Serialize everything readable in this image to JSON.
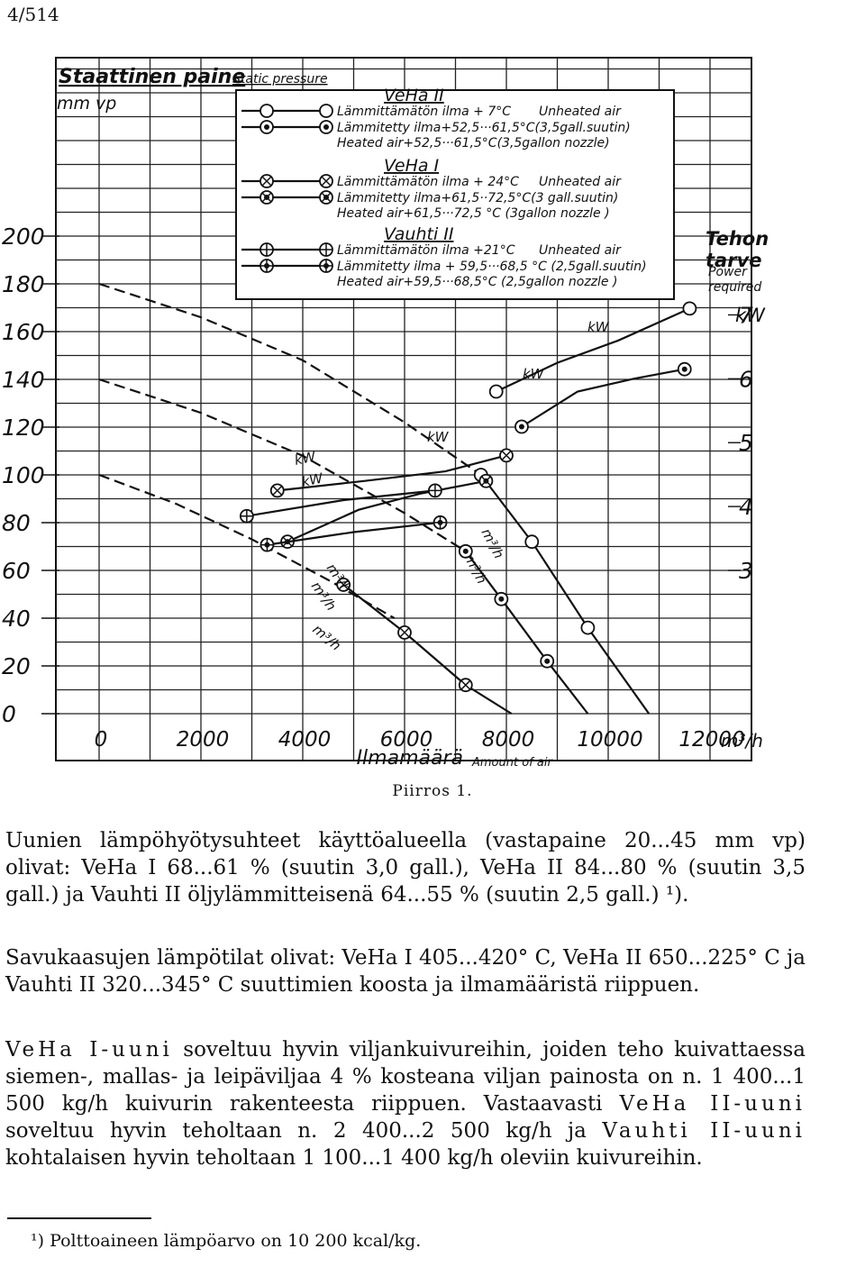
{
  "page_number": "4/514",
  "figure": {
    "y_title_fi": "Staattinen paine",
    "y_title_en": "Static pressure",
    "y_unit": "mm vp",
    "x_title_fi": "Ilmamäärä",
    "x_title_en": "Amount of air",
    "x_unit": "m³/h",
    "right_title_fi": "Tehon tarve",
    "right_title_en": "Power required",
    "right_unit": "kW",
    "kw_tag": "kW",
    "m3h_tag": "m³/h",
    "legend": [
      {
        "model": "VeHa II",
        "unheated_fi": "Lämmittämätön ilma + 7°C",
        "unheated_en": "Unheated air",
        "heated_fi": "Lämmitetty ilma+52,5···61,5°C(3,5gall.suutin)",
        "heated_en": "Heated air+52,5···61,5°C(3,5gallon nozzle)"
      },
      {
        "model": "VeHa I",
        "unheated_fi": "Lämmittämätön ilma + 24°C",
        "unheated_en": "Unheated air",
        "heated_fi": "Lämmitetty ilma+61,5··72,5°C(3 gall.suutin)",
        "heated_en": "Heated air+61,5···72,5 °C (3gallon nozzle )"
      },
      {
        "model": "Vauhti II",
        "unheated_fi": "Lämmittämätön ilma +21°C",
        "unheated_en": "Unheated air",
        "heated_fi": "Lämmitetty ilma + 59,5···68,5 °C (2,5gall.suutin)",
        "heated_en": "Heated air+59,5···68,5°C (2,5gallon nozzle )"
      }
    ]
  },
  "chart_data": {
    "type": "line",
    "x_ticks": [
      "0",
      "2000",
      "4000",
      "6000",
      "8000",
      "10000",
      "12000"
    ],
    "y_ticks": [
      "0",
      "20",
      "40",
      "60",
      "80",
      "100",
      "120",
      "140",
      "160",
      "180",
      "200"
    ],
    "power_ticks": [
      "3",
      "4",
      "5",
      "6",
      "7"
    ],
    "xlim": [
      0,
      12000
    ],
    "ylim": [
      0,
      200
    ],
    "power_lim": [
      3,
      7
    ],
    "series": [
      {
        "role": "pressure",
        "style": "dashed",
        "heated": false,
        "marker": "open-circle",
        "x": [
          0,
          2000,
          4000,
          6000,
          7500
        ],
        "y": [
          180,
          166,
          148,
          122,
          100
        ]
      },
      {
        "role": "pressure",
        "style": "dashed",
        "heated": true,
        "marker": "open-circle",
        "x": [
          0,
          2000,
          4000,
          6000,
          7200
        ],
        "y": [
          140,
          126,
          108,
          84,
          68
        ]
      },
      {
        "role": "pressure",
        "style": "dashed",
        "heated": false,
        "marker": "crossed-circle",
        "x": [
          0,
          1500,
          3000,
          4500,
          5800
        ],
        "y": [
          100,
          88,
          73,
          56,
          40
        ]
      },
      {
        "role": "pressure",
        "style": "solid",
        "heated": false,
        "marker": "open-circle",
        "x": [
          7500,
          8500,
          9600,
          10800
        ],
        "y": [
          100,
          72,
          36,
          0
        ]
      },
      {
        "role": "pressure",
        "style": "solid",
        "heated": true,
        "marker": "open-circle",
        "x": [
          7200,
          7900,
          8800,
          9600
        ],
        "y": [
          68,
          48,
          22,
          0
        ]
      },
      {
        "role": "pressure",
        "style": "solid",
        "heated": false,
        "marker": "crossed-circle",
        "x": [
          4800,
          6000,
          7200,
          8100
        ],
        "y": [
          54,
          34,
          12,
          0
        ]
      },
      {
        "role": "power",
        "style": "solid",
        "heated": false,
        "marker": "open-circle",
        "x": [
          7800,
          9000,
          10200,
          11600
        ],
        "y": [
          5.8,
          6.25,
          6.6,
          7.1
        ]
      },
      {
        "role": "power",
        "style": "solid",
        "heated": true,
        "marker": "open-circle",
        "x": [
          8300,
          9400,
          10500,
          11500
        ],
        "y": [
          5.25,
          5.8,
          6.0,
          6.15
        ]
      },
      {
        "role": "power",
        "style": "solid",
        "heated": false,
        "marker": "crossed-circle",
        "x": [
          3500,
          5200,
          6800,
          8000
        ],
        "y": [
          4.25,
          4.4,
          4.55,
          4.8
        ]
      },
      {
        "role": "power",
        "style": "solid",
        "heated": true,
        "marker": "crossed-circle",
        "x": [
          3700,
          5100,
          6300,
          7600
        ],
        "y": [
          3.45,
          3.95,
          4.2,
          4.4
        ]
      },
      {
        "role": "power",
        "style": "solid",
        "heated": false,
        "marker": "barred-circle",
        "x": [
          2900,
          4800,
          6600
        ],
        "y": [
          3.85,
          4.1,
          4.25
        ]
      },
      {
        "role": "power",
        "style": "solid",
        "heated": true,
        "marker": "barred-circle",
        "x": [
          3300,
          5000,
          6700
        ],
        "y": [
          3.4,
          3.6,
          3.75
        ]
      }
    ]
  },
  "caption": "Piirros 1.",
  "para1": "Uunien lämpöhyötysuhteet käyttöalueella (vastapaine 20...45 mm vp) olivat: VeHa I 68...61 % (suutin 3,0 gall.), VeHa II 84...80 % (suutin 3,5 gall.) ja Vauhti II öljylämmitteisenä 64...55 % (suutin 2,5 gall.) ¹).",
  "para2": "Savukaasujen lämpötilat olivat: VeHa I 405...420° C, VeHa II 650...225° C ja Vauhti II 320...345° C suuttimien koosta ja ilmamääristä riippuen.",
  "para3": {
    "s1": "VeHa I-uuni",
    "t1": " soveltuu hyvin viljankuivureihin, joiden teho kuivattaessa siemen-, mallas- ja leipäviljaa 4 % kosteana viljan painosta on n. 1 400...1 500 kg/h kuivurin rakenteesta riippuen. Vastaavasti ",
    "s2": "VeHa II-uuni",
    "t2": " soveltuu hyvin teholtaan n. 2 400...2 500 kg/h ja ",
    "s3": "Vauhti II-uuni",
    "t3": " kohtalaisen hyvin teholtaan 1 100...1 400 kg/h oleviin kuivureihin."
  },
  "footnote": "¹) Polttoaineen lämpöarvo on 10 200 kcal/kg."
}
